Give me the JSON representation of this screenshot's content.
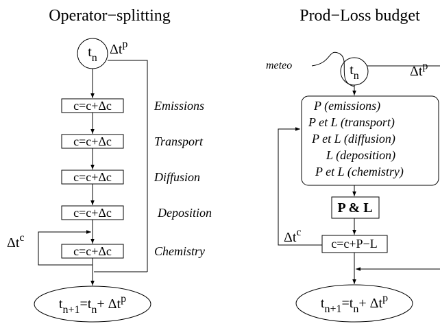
{
  "left": {
    "title": "Operator−splitting",
    "start": [
      {
        "text": "t",
        "pos": "base"
      },
      {
        "text": "n",
        "pos": "sub"
      }
    ],
    "step": [
      {
        "text": "Δt",
        "pos": "base"
      },
      {
        "text": "p",
        "pos": "sup"
      }
    ],
    "steps": [
      {
        "box": "c=c+Δc",
        "label": "Emissions"
      },
      {
        "box": "c=c+Δc",
        "label": "Transport"
      },
      {
        "box": "c=c+Δc",
        "label": "Diffusion"
      },
      {
        "box": "c=c+Δc",
        "label": "Deposition"
      },
      {
        "box": "c=c+Δc",
        "label": "Chemistry"
      }
    ],
    "loop": [
      {
        "text": "Δt",
        "pos": "base"
      },
      {
        "text": "c",
        "pos": "sup"
      }
    ],
    "end": [
      {
        "text": "t",
        "pos": "base"
      },
      {
        "text": "n+1",
        "pos": "sub"
      },
      {
        "text": "=t",
        "pos": "base"
      },
      {
        "text": "n",
        "pos": "sub"
      },
      {
        "text": "+ Δt",
        "pos": "base"
      },
      {
        "text": "p",
        "pos": "sup"
      }
    ]
  },
  "right": {
    "title": "Prod−Loss budget",
    "start": [
      {
        "text": "t",
        "pos": "base"
      },
      {
        "text": "n",
        "pos": "sub"
      }
    ],
    "step": [
      {
        "text": "Δt",
        "pos": "base"
      },
      {
        "text": "p",
        "pos": "sup"
      }
    ],
    "input": "meteo",
    "budget": [
      "P (emissions)",
      "P et L (transport)",
      "P et L (diffusion)",
      "L (deposition)",
      "P et L (chemistry)"
    ],
    "operator": "P & L",
    "update": "c=c+P−L",
    "loop": [
      {
        "text": "Δt",
        "pos": "base"
      },
      {
        "text": "c",
        "pos": "sup"
      }
    ],
    "end": [
      {
        "text": "t",
        "pos": "base"
      },
      {
        "text": "n+1",
        "pos": "sub"
      },
      {
        "text": "=t",
        "pos": "base"
      },
      {
        "text": "n",
        "pos": "sub"
      },
      {
        "text": "+ Δt",
        "pos": "base"
      },
      {
        "text": "p",
        "pos": "sup"
      }
    ]
  }
}
